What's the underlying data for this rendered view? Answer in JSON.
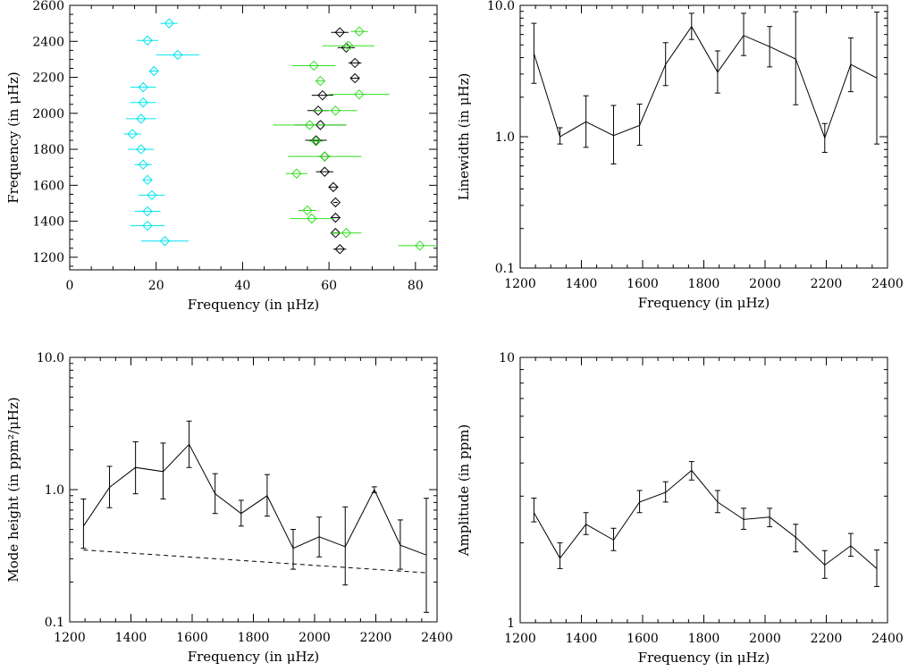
{
  "chart_data": [
    {
      "type": "scatter",
      "xlabel": "Frequency (in μHz)",
      "ylabel": "Frequency (in μHz)",
      "xlim": [
        0,
        85
      ],
      "ylim": [
        1130,
        2600
      ],
      "xticks": [
        0,
        20,
        40,
        60,
        80
      ],
      "yticks": [
        1200,
        1400,
        1600,
        1800,
        2000,
        2200,
        2400,
        2600
      ],
      "xscale": "linear",
      "yscale": "linear",
      "marker": "diamond",
      "series": [
        {
          "color": "#00e5ee",
          "points": [
            {
              "x": 22,
              "xerr": 5.5,
              "y": 1290
            },
            {
              "x": 18,
              "xerr": 4.0,
              "y": 1375
            },
            {
              "x": 18,
              "xerr": 3.0,
              "y": 1455
            },
            {
              "x": 19,
              "xerr": 3.0,
              "y": 1545
            },
            {
              "x": 18,
              "xerr": 1.0,
              "y": 1630
            },
            {
              "x": 17,
              "xerr": 2.0,
              "y": 1715
            },
            {
              "x": 16.5,
              "xerr": 3.0,
              "y": 1800
            },
            {
              "x": 14.5,
              "xerr": 2.0,
              "y": 1885
            },
            {
              "x": 16.5,
              "xerr": 3.5,
              "y": 1970
            },
            {
              "x": 17,
              "xerr": 3.0,
              "y": 2060
            },
            {
              "x": 17,
              "xerr": 3.0,
              "y": 2145
            },
            {
              "x": 19.5,
              "xerr": 1.0,
              "y": 2235
            },
            {
              "x": 25,
              "xerr": 5.0,
              "y": 2325
            },
            {
              "x": 18,
              "xerr": 2.5,
              "y": 2405
            },
            {
              "x": 23,
              "xerr": 2.0,
              "y": 2500
            }
          ]
        },
        {
          "color": "#000000",
          "points": [
            {
              "x": 62.5,
              "xerr": 1.5,
              "y": 1245
            },
            {
              "x": 61.5,
              "xerr": 1.0,
              "y": 1335
            },
            {
              "x": 61.5,
              "xerr": 1.0,
              "y": 1420
            },
            {
              "x": 61.5,
              "xerr": 0.5,
              "y": 1505
            },
            {
              "x": 61,
              "xerr": 1.0,
              "y": 1590
            },
            {
              "x": 59,
              "xerr": 2.0,
              "y": 1675
            },
            {
              "x": 59,
              "xerr": 1.5,
              "y": 1760
            },
            {
              "x": 57,
              "xerr": 2.5,
              "y": 1850
            },
            {
              "x": 58,
              "xerr": 6.0,
              "y": 1935
            },
            {
              "x": 57.5,
              "xerr": 2.5,
              "y": 2015
            },
            {
              "x": 58.5,
              "xerr": 2.5,
              "y": 2100
            },
            {
              "x": 66,
              "xerr": 1.0,
              "y": 2195
            },
            {
              "x": 66,
              "xerr": 1.5,
              "y": 2280
            },
            {
              "x": 64,
              "xerr": 2.0,
              "y": 2365
            },
            {
              "x": 62.5,
              "xerr": 2.0,
              "y": 2450
            }
          ]
        },
        {
          "color": "#33dd22",
          "points": [
            {
              "x": 81,
              "xerr": 5.0,
              "y": 1265
            },
            {
              "x": 64,
              "xerr": 3.5,
              "y": 1335
            },
            {
              "x": 56,
              "xerr": 5.0,
              "y": 1415
            },
            {
              "x": 55,
              "xerr": 2.0,
              "y": 1460
            },
            {
              "x": 52.5,
              "xerr": 2.5,
              "y": 1665
            },
            {
              "x": 59,
              "xerr": 8.5,
              "y": 1760
            },
            {
              "x": 57,
              "xerr": 1.5,
              "y": 1845
            },
            {
              "x": 55.5,
              "xerr": 8.5,
              "y": 1935
            },
            {
              "x": 61.5,
              "xerr": 5.0,
              "y": 2015
            },
            {
              "x": 67,
              "xerr": 7.0,
              "y": 2105
            },
            {
              "x": 58,
              "xerr": 1.0,
              "y": 2180
            },
            {
              "x": 56.5,
              "xerr": 5.0,
              "y": 2265
            },
            {
              "x": 64.5,
              "xerr": 6.0,
              "y": 2375
            },
            {
              "x": 67,
              "xerr": 2.0,
              "y": 2455
            }
          ]
        }
      ]
    },
    {
      "type": "line",
      "xlabel": "Frequency (in μHz)",
      "ylabel": "Linewidth (in μHz)",
      "xlim": [
        1200,
        2400
      ],
      "ylim": [
        0.1,
        10
      ],
      "xticks": [
        1200,
        1400,
        1600,
        1800,
        2000,
        2200,
        2400
      ],
      "yticks": [
        0.1,
        1.0,
        10.0
      ],
      "ytick_labels": [
        "0.1",
        "1.0",
        "10.0"
      ],
      "xscale": "linear",
      "yscale": "log",
      "series": [
        {
          "color": "#000000",
          "points": [
            {
              "x": 1245,
              "y": 4.3,
              "lo": 2.55,
              "hi": 7.3
            },
            {
              "x": 1330,
              "y": 1.0,
              "lo": 0.88,
              "hi": 1.17
            },
            {
              "x": 1415,
              "y": 1.3,
              "lo": 0.83,
              "hi": 2.05
            },
            {
              "x": 1505,
              "y": 1.02,
              "lo": 0.62,
              "hi": 1.73
            },
            {
              "x": 1590,
              "y": 1.22,
              "lo": 0.86,
              "hi": 1.77
            },
            {
              "x": 1675,
              "y": 3.55,
              "lo": 2.45,
              "hi": 5.2
            },
            {
              "x": 1760,
              "y": 6.9,
              "lo": 5.5,
              "hi": 8.7
            },
            {
              "x": 1845,
              "y": 3.1,
              "lo": 2.15,
              "hi": 4.5
            },
            {
              "x": 1930,
              "y": 5.9,
              "lo": 4.15,
              "hi": 8.7
            },
            {
              "x": 2015,
              "y": 4.85,
              "lo": 3.4,
              "hi": 6.9
            },
            {
              "x": 2100,
              "y": 3.9,
              "lo": 1.75,
              "hi": 8.95
            },
            {
              "x": 2195,
              "y": 0.98,
              "lo": 0.76,
              "hi": 1.26
            },
            {
              "x": 2280,
              "y": 3.55,
              "lo": 2.2,
              "hi": 5.65
            },
            {
              "x": 2365,
              "y": 2.8,
              "lo": 0.88,
              "hi": 8.9
            }
          ]
        }
      ]
    },
    {
      "type": "line",
      "xlabel": "Frequency (in μHz)",
      "ylabel": "Mode height (in ppm²/μHz)",
      "xlim": [
        1200,
        2400
      ],
      "ylim": [
        0.1,
        10
      ],
      "xticks": [
        1200,
        1400,
        1600,
        1800,
        2000,
        2200,
        2400
      ],
      "yticks": [
        0.1,
        1.0,
        10.0
      ],
      "ytick_labels": [
        "0.1",
        "1.0",
        "10.0"
      ],
      "xscale": "linear",
      "yscale": "log",
      "series": [
        {
          "color": "#000000",
          "points": [
            {
              "x": 1245,
              "y": 0.53,
              "lo": 0.36,
              "hi": 0.85
            },
            {
              "x": 1330,
              "y": 1.04,
              "lo": 0.73,
              "hi": 1.5
            },
            {
              "x": 1415,
              "y": 1.47,
              "lo": 0.93,
              "hi": 2.3
            },
            {
              "x": 1505,
              "y": 1.37,
              "lo": 0.85,
              "hi": 2.25
            },
            {
              "x": 1590,
              "y": 2.2,
              "lo": 1.47,
              "hi": 3.3
            },
            {
              "x": 1675,
              "y": 0.93,
              "lo": 0.66,
              "hi": 1.32
            },
            {
              "x": 1760,
              "y": 0.66,
              "lo": 0.53,
              "hi": 0.83
            },
            {
              "x": 1845,
              "y": 0.9,
              "lo": 0.63,
              "hi": 1.3
            },
            {
              "x": 1930,
              "y": 0.36,
              "lo": 0.25,
              "hi": 0.5
            },
            {
              "x": 2015,
              "y": 0.44,
              "lo": 0.31,
              "hi": 0.62
            },
            {
              "x": 2100,
              "y": 0.37,
              "lo": 0.19,
              "hi": 0.74
            },
            {
              "x": 2195,
              "y": 1.0,
              "lo": 0.95,
              "hi": 1.05
            },
            {
              "x": 2280,
              "y": 0.38,
              "lo": 0.25,
              "hi": 0.59
            },
            {
              "x": 2365,
              "y": 0.32,
              "lo": 0.118,
              "hi": 0.86
            }
          ]
        },
        {
          "color": "#000000",
          "style": "dashed",
          "points": [
            {
              "x": 1245,
              "y": 0.35
            },
            {
              "x": 2365,
              "y": 0.235
            }
          ]
        }
      ]
    },
    {
      "type": "line",
      "xlabel": "Frequency (in μHz)",
      "ylabel": "Amplitude (in ppm)",
      "xlim": [
        1200,
        2400
      ],
      "ylim": [
        1,
        10
      ],
      "xticks": [
        1200,
        1400,
        1600,
        1800,
        2000,
        2200,
        2400
      ],
      "yticks": [
        1,
        10
      ],
      "ytick_labels": [
        "1",
        "10"
      ],
      "xscale": "linear",
      "yscale": "log",
      "series": [
        {
          "color": "#000000",
          "points": [
            {
              "x": 1245,
              "y": 2.6,
              "lo": 2.4,
              "hi": 2.95
            },
            {
              "x": 1330,
              "y": 1.75,
              "lo": 1.6,
              "hi": 2.0
            },
            {
              "x": 1415,
              "y": 2.35,
              "lo": 2.15,
              "hi": 2.6
            },
            {
              "x": 1505,
              "y": 2.05,
              "lo": 1.87,
              "hi": 2.27
            },
            {
              "x": 1590,
              "y": 2.85,
              "lo": 2.6,
              "hi": 3.15
            },
            {
              "x": 1675,
              "y": 3.1,
              "lo": 2.85,
              "hi": 3.4
            },
            {
              "x": 1760,
              "y": 3.75,
              "lo": 3.45,
              "hi": 4.05
            },
            {
              "x": 1845,
              "y": 2.85,
              "lo": 2.6,
              "hi": 3.15
            },
            {
              "x": 1930,
              "y": 2.45,
              "lo": 2.25,
              "hi": 2.7
            },
            {
              "x": 2015,
              "y": 2.5,
              "lo": 2.3,
              "hi": 2.7
            },
            {
              "x": 2100,
              "y": 2.1,
              "lo": 1.85,
              "hi": 2.35
            },
            {
              "x": 2195,
              "y": 1.65,
              "lo": 1.47,
              "hi": 1.87
            },
            {
              "x": 2280,
              "y": 1.95,
              "lo": 1.78,
              "hi": 2.17
            },
            {
              "x": 2365,
              "y": 1.6,
              "lo": 1.37,
              "hi": 1.88
            }
          ]
        }
      ]
    }
  ]
}
